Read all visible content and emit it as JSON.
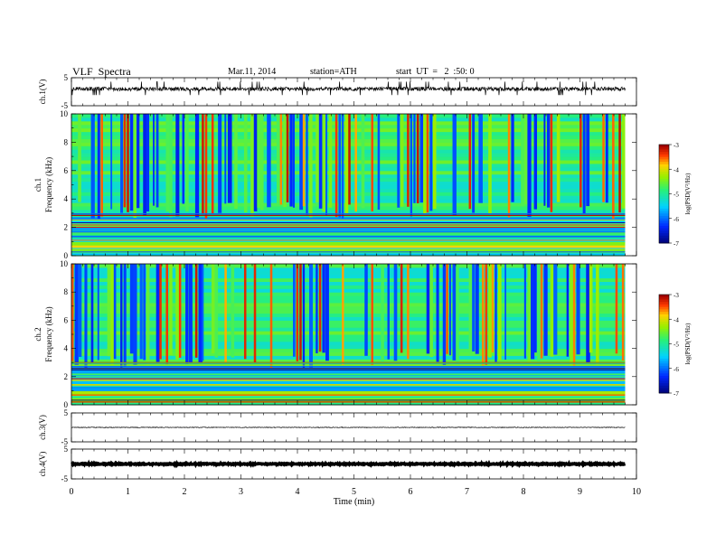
{
  "header": {
    "title": "VLF  Spectra",
    "date": "Mar.11, 2014",
    "station": "station=ATH",
    "start": "start  UT  =   2  :50: 0"
  },
  "chart_data": [
    {
      "type": "line",
      "panel": "ch1-waveform",
      "ylabel": "ch.1(V)",
      "ylim": [
        -5,
        5
      ],
      "yticks": [
        5,
        -5
      ],
      "x_range_min": [
        0,
        9.8
      ],
      "baseline_value": 1.0,
      "noise_band": [
        -0.1,
        2.4
      ],
      "color": "#000000"
    },
    {
      "type": "heatmap",
      "panel": "ch1-spectrogram",
      "ylabel_top": "ch.1",
      "ylabel": "Frequency  (kHz)",
      "ylim": [
        0,
        10
      ],
      "yticks": [
        0,
        2,
        4,
        6,
        8,
        10
      ],
      "x_range_min": [
        0,
        9.8
      ],
      "colorbar_label": "log(PSD(V²/Hz)",
      "colorbar_range": [
        -7,
        -3
      ],
      "colorbar_ticks": [
        "-3",
        "-4",
        "-5",
        "-6",
        "-7"
      ]
    },
    {
      "type": "heatmap",
      "panel": "ch2-spectrogram",
      "ylabel_top": "ch.2",
      "ylabel": "Frequency  (kHz)",
      "ylim": [
        0,
        10
      ],
      "yticks": [
        0,
        2,
        4,
        6,
        8,
        10
      ],
      "x_range_min": [
        0,
        9.8
      ],
      "colorbar_label": "log(PSD(V²/Hz)",
      "colorbar_range": [
        -7,
        -3
      ],
      "colorbar_ticks": [
        "-3",
        "-4",
        "-5",
        "-6",
        "-7"
      ]
    },
    {
      "type": "line",
      "panel": "ch3-waveform",
      "ylabel": "ch.3(V)",
      "ylim": [
        -5,
        5
      ],
      "yticks": [
        5,
        -5
      ],
      "x_range_min": [
        0,
        9.8
      ],
      "baseline_value": 0.0,
      "noise_band": [
        -0.2,
        0.2
      ],
      "color": "#000000"
    },
    {
      "type": "line",
      "panel": "ch4-waveform",
      "ylabel": "ch.4(V)",
      "ylim": [
        -5,
        5
      ],
      "yticks": [
        5,
        -5
      ],
      "x_range_min": [
        0,
        9.8
      ],
      "baseline_value": 0.0,
      "noise_band": [
        -0.3,
        0.3
      ],
      "color": "#000000"
    }
  ],
  "xaxis": {
    "label": "Time  (min)",
    "range": [
      0,
      10
    ],
    "ticks": [
      "0",
      "1",
      "2",
      "3",
      "4",
      "5",
      "6",
      "7",
      "8",
      "9",
      "10"
    ]
  }
}
